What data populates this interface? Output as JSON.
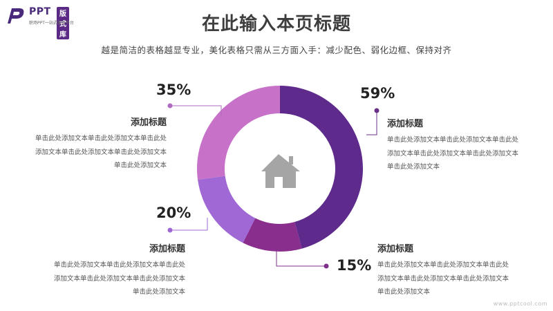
{
  "logo": {
    "brand": "PPT",
    "badge": "版式库",
    "tagline": "职场PPT一站式服务平台"
  },
  "header": {
    "title": "在此输入本页标题",
    "subtitle": "越是简洁的表格越显专业，美化表格只需从三方面入手：减少配色、弱化边框、保持对齐"
  },
  "chart_data": {
    "type": "pie",
    "variant": "donut",
    "center_icon": "home-icon",
    "slices": [
      {
        "label": "59%",
        "value": 59,
        "color": "#5e2a8c"
      },
      {
        "label": "15%",
        "value": 15,
        "color": "#8a2e8e"
      },
      {
        "label": "20%",
        "value": 20,
        "color": "#a068d4"
      },
      {
        "label": "35%",
        "value": 35,
        "color": "#c772c8"
      }
    ]
  },
  "blocks": {
    "top_right": {
      "title": "添加标题",
      "lines": [
        "单击此处添加文本单击此处添加文本单击此处",
        "添加文本单击此处添加文本单击此处添加文本",
        "单击此处添加文本"
      ]
    },
    "bottom_right": {
      "title": "添加标题",
      "lines": [
        "单击此处添加文本单击此处添加文本单击此处",
        "添加文本单击此处添加文本单击此处添加文本",
        "单击此处添加文本"
      ]
    },
    "top_left": {
      "title": "添加标题",
      "lines": [
        "单击此处添加文本单击此处添加文本单击此处",
        "添加文本单击此处添加文本单击此处添加文本",
        "单击此处添加文本"
      ]
    },
    "bottom_left": {
      "title": "添加标题",
      "lines": [
        "单击此处添加文本单击此处添加文本单击此处",
        "添加文本单击此处添加文本单击此处添加文本",
        "单击此处添加文本"
      ]
    }
  },
  "watermark": "www.pptcool.com",
  "colors": {
    "accent": "#5e2a8c",
    "connector_dark": "#6a2f86",
    "connector_light": "#b06ac0",
    "icon_gray": "#a5a5a5"
  }
}
